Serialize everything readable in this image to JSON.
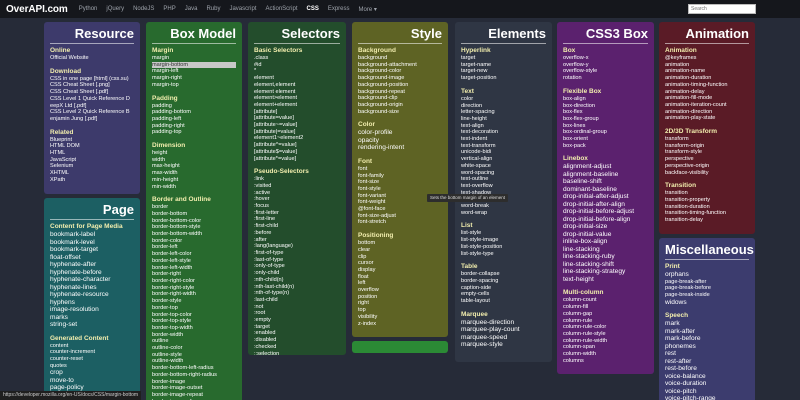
{
  "header": {
    "logo": "OverAPI.com",
    "nav": [
      "Python",
      "jQuery",
      "NodeJS",
      "PHP",
      "Java",
      "Ruby",
      "Javascript",
      "ActionScript",
      "CSS",
      "Express",
      "More ▾"
    ],
    "active_nav": "CSS",
    "search_placeholder": "Search"
  },
  "colors": {
    "background": "#262b38",
    "topbar": "#15171c",
    "resource": "#3d3a6b",
    "page": "#1c5f63",
    "box_model": "#286a2e",
    "selectors": "#234d2c",
    "style": "#5e6324",
    "elements": "#2f3644",
    "css3box": "#5b216e",
    "animation": "#5a1b26",
    "misc": "#3c3c6e",
    "section_title": "#f2eeae"
  },
  "cards": {
    "resource": {
      "title": "Resource",
      "sections": [
        {
          "title": "Online",
          "items": [
            "Official Website"
          ]
        },
        {
          "title": "Download",
          "items": [
            "CSS in one page [html] (css.su)",
            "CSS Cheat Sheet [.png]",
            "CSS Cheat Sheet [.pdf]",
            "CSS Level 1 Quick Reference D",
            "eepX Ltd [.pdf]",
            "CSS Level 2 Quick Reference B",
            "enjamin Jung [.pdf]"
          ]
        },
        {
          "title": "Related",
          "items": [
            "Blueprint",
            "HTML DOM",
            "HTML",
            "JavaScript",
            "Selenium",
            "XHTML",
            "XPath"
          ]
        }
      ]
    },
    "page": {
      "title": "Page",
      "sections": [
        {
          "title": "Content for Page Media",
          "items": [
            "bookmark-label",
            "bookmark-level",
            "bookmark-target",
            "float-offset",
            "hyphenate-after",
            "hyphenate-before",
            "hyphenate-character",
            "hyphenate-lines",
            "hyphenate-resource",
            "hyphens",
            "image-resolution",
            "marks",
            "string-set"
          ]
        },
        {
          "title": "Generated Content",
          "items": [
            "content",
            "counter-increment",
            "counter-reset",
            "quotes",
            "crop",
            "move-to",
            "page-policy"
          ]
        }
      ]
    },
    "box_model": {
      "title": "Box Model",
      "sections": [
        {
          "title": "Margin",
          "items": [
            "margin",
            "margin-bottom",
            "margin-left",
            "margin-right",
            "margin-top"
          ]
        },
        {
          "title": "Padding",
          "items": [
            "padding",
            "padding-bottom",
            "padding-left",
            "padding-right",
            "padding-top"
          ]
        },
        {
          "title": "Dimension",
          "items": [
            "height",
            "width",
            "max-height",
            "max-width",
            "min-height",
            "min-width"
          ]
        },
        {
          "title": "Border and Outline",
          "items": [
            "border",
            "border-bottom",
            "border-bottom-color",
            "border-bottom-style",
            "border-bottom-width",
            "border-color",
            "border-left",
            "border-left-color",
            "border-left-style",
            "border-left-width",
            "border-right",
            "border-right-color",
            "border-right-style",
            "border-right-width",
            "border-style",
            "border-top",
            "border-top-color",
            "border-top-style",
            "border-top-width",
            "border-width",
            "outline",
            "outline-color",
            "outline-style",
            "outline-width",
            "border-bottom-left-radius",
            "border-bottom-right-radius",
            "border-image",
            "border-image-outset",
            "border-image-repeat",
            "border-image-slice"
          ]
        }
      ],
      "highlighted": "margin-bottom"
    },
    "selectors": {
      "title": "Selectors",
      "sections": [
        {
          "title": "Basic Selectors",
          "items": [
            ".class",
            "#id",
            "*",
            "element",
            "element,element",
            "element element",
            "element>element",
            "element+element",
            "[attribute]",
            "[attribute=value]",
            "[attribute~=value]",
            "[attribute|=value]",
            "element1~element2",
            "[attribute^=value]",
            "[attribute$=value]",
            "[attribute*=value]"
          ]
        },
        {
          "title": "Pseudo-Selectors",
          "items": [
            ":link",
            ":visited",
            ":active",
            ":hover",
            ":focus",
            ":first-letter",
            ":first-line",
            ":first-child",
            ":before",
            ":after",
            ":lang(language)",
            ":first-of-type",
            ":last-of-type",
            ":only-of-type",
            ":only-child",
            ":nth-child(n)",
            ":nth-last-child(n)",
            ":nth-of-type(n)",
            ":last-child",
            ":not",
            ":root",
            ":empty",
            ":target",
            ":enabled",
            ":disabled",
            ":checked",
            "::selection"
          ]
        }
      ]
    },
    "style": {
      "title": "Style",
      "sections": [
        {
          "title": "Background",
          "items": [
            "background",
            "background-attachment",
            "background-color",
            "background-image",
            "background-position",
            "background-repeat",
            "background-clip",
            "background-origin",
            "background-size"
          ]
        },
        {
          "title": "Color",
          "items": [
            "color-profile",
            "opacity",
            "rendering-intent"
          ]
        },
        {
          "title": "Font",
          "items": [
            "font",
            "font-family",
            "font-size",
            "font-style",
            "font-variant",
            "font-weight",
            "@font-face",
            "font-size-adjust",
            "font-stretch"
          ]
        },
        {
          "title": "Positioning",
          "items": [
            "bottom",
            "clear",
            "clip",
            "cursor",
            "display",
            "float",
            "left",
            "overflow",
            "position",
            "right",
            "top",
            "visibility",
            "z-index"
          ]
        }
      ]
    },
    "elements": {
      "title": "Elements",
      "sections": [
        {
          "title": "Hyperlink",
          "items": [
            "target",
            "target-name",
            "target-new",
            "target-position"
          ]
        },
        {
          "title": "Text",
          "items": [
            "color",
            "direction",
            "letter-spacing",
            "line-height",
            "text-align",
            "text-decoration",
            "text-indent",
            "text-transform",
            "unicode-bidi",
            "vertical-align",
            "white-space",
            "word-spacing",
            "text-outline",
            "text-overflow",
            "text-shadow",
            "text-wrap",
            "word-break",
            "word-wrap"
          ]
        },
        {
          "title": "List",
          "items": [
            "list-style",
            "list-style-image",
            "list-style-position",
            "list-style-type"
          ]
        },
        {
          "title": "Table",
          "items": [
            "border-collapse",
            "border-spacing",
            "caption-side",
            "empty-cells",
            "table-layout"
          ]
        },
        {
          "title": "Marquee",
          "items": [
            "marquee-direction",
            "marquee-play-count",
            "marquee-speed",
            "marquee-style"
          ]
        }
      ]
    },
    "css3box": {
      "title": "CSS3 Box",
      "sections": [
        {
          "title": "Box",
          "items": [
            "overflow-x",
            "overflow-y",
            "overflow-style",
            "rotation"
          ]
        },
        {
          "title": "Flexible Box",
          "items": [
            "box-align",
            "box-direction",
            "box-flex",
            "box-flex-group",
            "box-lines",
            "box-ordinal-group",
            "box-orient",
            "box-pack"
          ]
        },
        {
          "title": "Linebox",
          "items": [
            "alignment-adjust",
            "alignment-baseline",
            "baseline-shift",
            "dominant-baseline",
            "drop-initial-after-adjust",
            "drop-initial-after-align",
            "drop-initial-before-adjust",
            "drop-initial-before-align",
            "drop-initial-size",
            "drop-initial-value",
            "inline-box-align",
            "line-stacking",
            "line-stacking-ruby",
            "line-stacking-shift",
            "line-stacking-strategy",
            "text-height"
          ]
        },
        {
          "title": "Multi-column",
          "items": [
            "column-count",
            "column-fill",
            "column-gap",
            "column-rule",
            "column-rule-color",
            "column-rule-style",
            "column-rule-width",
            "column-span",
            "column-width",
            "columns"
          ]
        }
      ]
    },
    "animation": {
      "title": "Animation",
      "sections": [
        {
          "title": "Animation",
          "items": [
            "@keyframes",
            "animation",
            "animation-name",
            "animation-duration",
            "animation-timing-function",
            "animation-delay",
            "animation-fill-mode",
            "animation-iteration-count",
            "animation-direction",
            "animation-play-state"
          ]
        },
        {
          "title": "2D/3D Transform",
          "items": [
            "transform",
            "transform-origin",
            "transform-style",
            "perspective",
            "perspective-origin",
            "backface-visibility"
          ]
        },
        {
          "title": "Transition",
          "items": [
            "transition",
            "transition-property",
            "transition-duration",
            "transition-timing-function",
            "transition-delay"
          ]
        }
      ]
    },
    "misc": {
      "title": "Miscellaneous",
      "sections": [
        {
          "title": "Print",
          "items": [
            "orphans",
            "page-break-after",
            "page-break-before",
            "page-break-inside",
            "widows"
          ]
        },
        {
          "title": "Speech",
          "items": [
            "mark",
            "mark-after",
            "mark-before",
            "phonemes",
            "rest",
            "rest-after",
            "rest-before",
            "voice-balance",
            "voice-duration",
            "voice-pitch",
            "voice-pitch-range"
          ]
        }
      ]
    }
  },
  "tooltip": "Sets the bottom margin of an element",
  "status_url": "https://developer.mozilla.org/en-US/docs/CSS/margin-bottom"
}
